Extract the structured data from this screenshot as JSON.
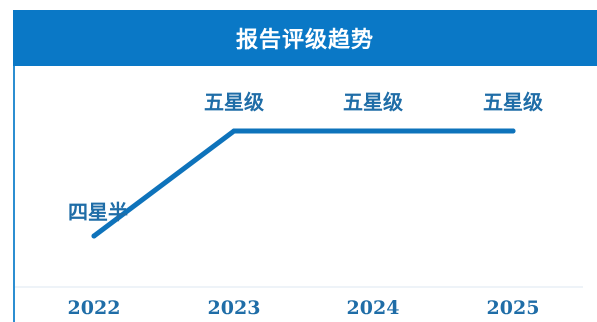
{
  "chart_data": {
    "type": "line",
    "title": "报告评级趋势",
    "categories": [
      "2022",
      "2023",
      "2024",
      "2025"
    ],
    "rating_levels": [
      "四星半",
      "五星级"
    ],
    "values": [
      4.5,
      5,
      5,
      5
    ],
    "point_labels": [
      "四星半",
      "五星级",
      "五星级",
      "五星级"
    ],
    "ylim": [
      4.5,
      5
    ],
    "grid": false,
    "legend": "none",
    "colors": {
      "line": "#0e73bb",
      "header": "#0a78c6",
      "label": "#1f6da7"
    }
  }
}
